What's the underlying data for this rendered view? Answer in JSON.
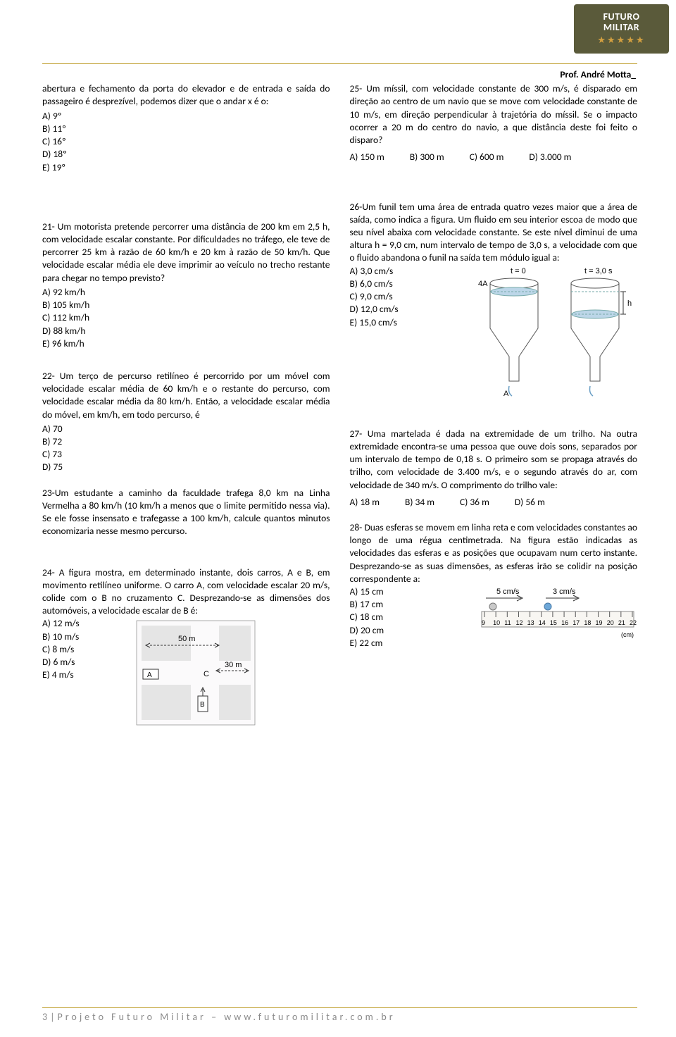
{
  "header": {
    "logo_line1": "FUTURO",
    "logo_line2": "MILITAR",
    "prof": "Prof. André Motta_"
  },
  "q20": {
    "text": "abertura e fechamento da porta do elevador e de entrada e saída do passageiro é desprezível, podemos dizer que o andar x é o:",
    "a": "A) 9º",
    "b": "B) 11º",
    "c": "C) 16º",
    "d": "D) 18º",
    "e": "E) 19º"
  },
  "q21": {
    "text": "21- Um motorista pretende percorrer uma distância de 200 km em 2,5 h, com velocidade escalar constante. Por dificuldades no tráfego, ele teve de percorrer 25 km à razão de 60 km/h e 20 km à razão de 50 km/h. Que velocidade escalar média ele deve imprimir ao veículo no trecho restante para chegar no tempo previsto?",
    "a": "A) 92 km/h",
    "b": "B) 105 km/h",
    "c": "C) 112 km/h",
    "d": "D) 88 km/h",
    "e": "E) 96 km/h"
  },
  "q22": {
    "text": "22- Um terço de percurso retilíneo é percorrido por um móvel com velocidade escalar média de 60 km/h e o restante do percurso, com velocidade escalar média da 80 km/h. Então, a velocidade escalar média do móvel, em km/h, em todo percurso, é",
    "a": "A) 70",
    "b": "B) 72",
    "c": "C) 73",
    "d": "D) 75"
  },
  "q23": {
    "text": "23-Um estudante a caminho da faculdade trafega 8,0 km na Linha Vermelha a 80 km/h (10 km/h a menos que o limite permitido nessa via). Se ele fosse insensato e trafegasse a 100 km/h, calcule quantos minutos economizaria nesse mesmo percurso."
  },
  "q24": {
    "text": "24- A figura mostra, em determinado instante, dois carros, A e B, em movimento retilíneo uniforme. O carro A, com velocidade escalar 20 m/s, colide com o B no cruzamento C. Desprezando-se as dimensões dos automóveis, a velocidade escalar de B é:",
    "a": "A) 12 m/s",
    "b": "B) 10 m/s",
    "c": "C) 8 m/s",
    "d": "D) 6 m/s",
    "e": "E) 4 m/s",
    "fig": {
      "d50": "50 m",
      "d30": "30 m",
      "A": "A",
      "B": "B",
      "C": "C"
    }
  },
  "q25": {
    "text": "25- Um míssil, com velocidade constante de 300 m/s, é disparado em direção ao centro de um navio que se move com velocidade constante de 10 m/s, em direção perpendicular à trajetória do míssil. Se o impacto ocorrer a 20 m do centro do navio, a que distância deste foi feito o disparo?",
    "a": "A) 150 m",
    "b": "B) 300 m",
    "c": "C) 600 m",
    "d": "D) 3.000 m"
  },
  "q26": {
    "text": "26-Um funil tem uma área de entrada quatro vezes maior que a área de saída, como indica a figura. Um fluido em seu interior escoa de modo que seu nível abaixa com velocidade constante. Se este nível diminui de uma altura h = 9,0 cm, num intervalo de tempo de 3,0 s, a velocidade com que o fluido abandona o funil na saída tem módulo igual a:",
    "a": "A) 3,0 cm/s",
    "b": "B) 6,0 cm/s",
    "c": "C) 9,0 cm/s",
    "d": "D) 12,0 cm/s",
    "e": "E) 15,0 cm/s",
    "fig": {
      "t0": "t = 0",
      "t3": "t = 3,0 s",
      "h": "h",
      "fourA": "4A",
      "A": "A"
    }
  },
  "q27": {
    "text": "27- Uma martelada é dada na extremidade de um trilho. Na outra extremidade encontra-se uma pessoa que ouve dois sons, separados por um intervalo de tempo de 0,18 s. O primeiro som se propaga através do trilho, com velocidade de 3.400 m/s, e o segundo através do ar, com velocidade de 340 m/s. O comprimento do trilho vale:",
    "a": "A) 18 m",
    "b": "B) 34 m",
    "c": "C) 36 m",
    "d": "D) 56 m"
  },
  "q28": {
    "text": "28- Duas esferas se movem em linha reta e com velocidades constantes ao longo de uma régua centimetrada. Na figura estão indicadas as velocidades das esferas e as posições que ocupavam num certo instante. Desprezando-se as suas dimensões, as esferas irão se colidir na posição correspondente a:",
    "a": "A) 15 cm",
    "b": "B) 17 cm",
    "c": "C) 18 cm",
    "d": "D) 20 cm",
    "e": "E) 22 cm",
    "fig": {
      "v1": "5 cm/s",
      "v2": "3 cm/s",
      "ticks": [
        "9",
        "10",
        "11",
        "12",
        "13",
        "14",
        "15",
        "16",
        "17",
        "18",
        "19",
        "20",
        "21",
        "22"
      ],
      "unit": "(cm)"
    }
  },
  "footer": {
    "text": "3|Projeto Futuro Militar – www.futuromilitar.com.br"
  }
}
